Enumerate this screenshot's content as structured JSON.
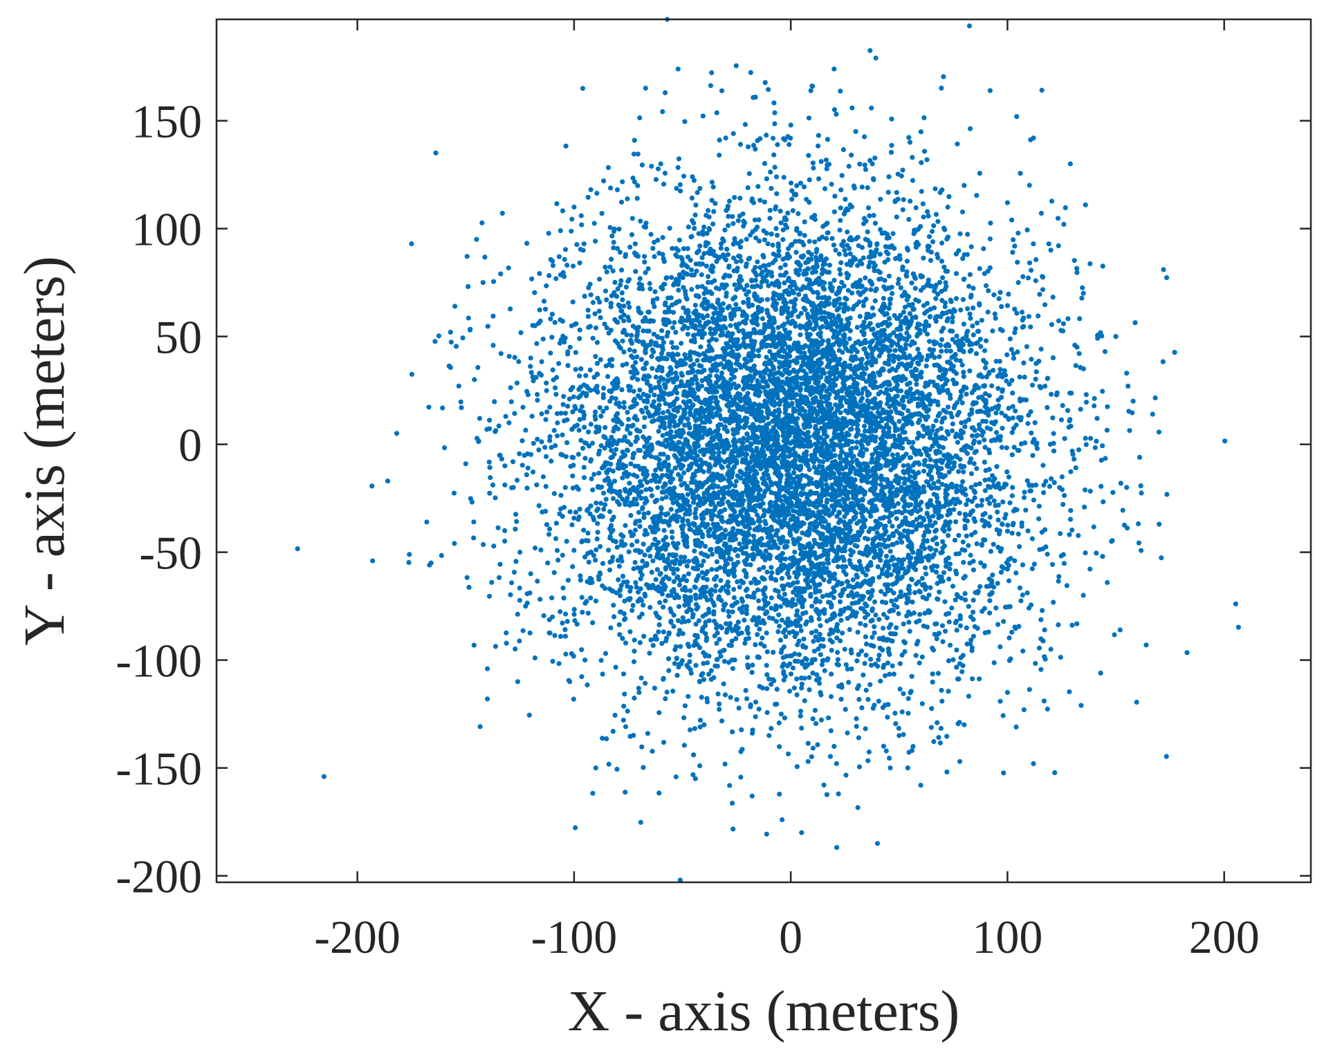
{
  "chart_data": {
    "type": "scatter",
    "title": "",
    "xlabel": "X - axis (meters)",
    "ylabel": "Y - axis (meters)",
    "xlim": [
      -265,
      240
    ],
    "ylim": [
      -203,
      197
    ],
    "x_ticks": [
      -200,
      -100,
      0,
      100,
      200
    ],
    "y_ticks": [
      -200,
      -150,
      -100,
      -50,
      0,
      50,
      100,
      150
    ],
    "x_tick_labels": [
      "-200",
      "-100",
      "0",
      "100",
      "200"
    ],
    "y_tick_labels": [
      "-200",
      "-150",
      "-100",
      "-50",
      "0",
      "50",
      "100",
      "150"
    ],
    "grid": false,
    "legend": "none",
    "marker_color": "#0072BD",
    "distribution": "approximately bivariate normal centered at (0, 0), standard deviation about 55 m per axis",
    "approximate_point_count": 9000,
    "series": [
      {
        "points": [
          [
            -57,
            197
          ],
          [
            -52,
            174
          ],
          [
            -58,
            163
          ],
          [
            -96,
            165
          ],
          [
            20,
            174
          ],
          [
            10,
            166
          ],
          [
            92,
            164
          ],
          [
            -175,
            93
          ],
          [
            -145,
            95
          ],
          [
            172,
            81
          ],
          [
            112,
            142
          ],
          [
            129,
            130
          ],
          [
            136,
            111
          ],
          [
            126,
            102
          ],
          [
            -186,
            -17
          ],
          [
            -193,
            -54
          ],
          [
            -176,
            -51
          ],
          [
            -166,
            -55
          ],
          [
            -168,
            -36
          ],
          [
            -150,
            -9
          ],
          [
            -155,
            64
          ],
          [
            -148,
            53
          ],
          [
            -157,
            52
          ],
          [
            -142,
            75
          ],
          [
            -146,
            30
          ],
          [
            -152,
            17
          ],
          [
            -140,
            -118
          ],
          [
            -140,
            -104
          ],
          [
            -126,
            -110
          ],
          [
            -90,
            -150
          ],
          [
            -102,
            -110
          ],
          [
            5,
            -180
          ],
          [
            40,
            -185
          ],
          [
            22,
            -162
          ],
          [
            -51,
            -202
          ],
          [
            -4,
            -174
          ],
          [
            8,
            -147
          ],
          [
            60,
            -158
          ],
          [
            112,
            -148
          ],
          [
            134,
            -121
          ],
          [
            164,
            -93
          ],
          [
            170,
            -37
          ],
          [
            152,
            -86
          ],
          [
            143,
            -106
          ],
          [
            161,
            -6
          ],
          [
            167,
            14
          ],
          [
            155,
            33
          ],
          [
            145,
            43
          ],
          [
            104,
            -131
          ],
          [
            78,
            -147
          ],
          [
            54,
            -150
          ],
          [
            -42,
            -149
          ],
          [
            -44,
            -155
          ],
          [
            -66,
            -134
          ],
          [
            -82,
            -133
          ],
          [
            -118,
            -99
          ],
          [
            -138,
            -64
          ],
          [
            -120,
            -60
          ],
          [
            -132,
            -40
          ],
          [
            -128,
            -20
          ],
          [
            -130,
            10
          ],
          [
            -120,
            40
          ],
          [
            -118,
            55
          ],
          [
            -110,
            85
          ],
          [
            -100,
            110
          ],
          [
            -80,
            118
          ],
          [
            -60,
            130
          ],
          [
            -30,
            142
          ],
          [
            0,
            148
          ],
          [
            30,
            145
          ],
          [
            55,
            140
          ],
          [
            80,
            120
          ],
          [
            100,
            112
          ],
          [
            120,
            90
          ],
          [
            135,
            70
          ],
          [
            150,
            50
          ],
          [
            158,
            20
          ],
          [
            155,
            -20
          ],
          [
            148,
            -45
          ],
          [
            135,
            -70
          ],
          [
            120,
            -95
          ],
          [
            100,
            -115
          ],
          [
            80,
            -130
          ],
          [
            50,
            -135
          ],
          [
            20,
            -140
          ],
          [
            -10,
            -135
          ],
          [
            -40,
            -130
          ],
          [
            -70,
            -115
          ],
          [
            -95,
            -100
          ],
          [
            -110,
            -80
          ],
          [
            -125,
            -50
          ]
        ]
      }
    ]
  }
}
